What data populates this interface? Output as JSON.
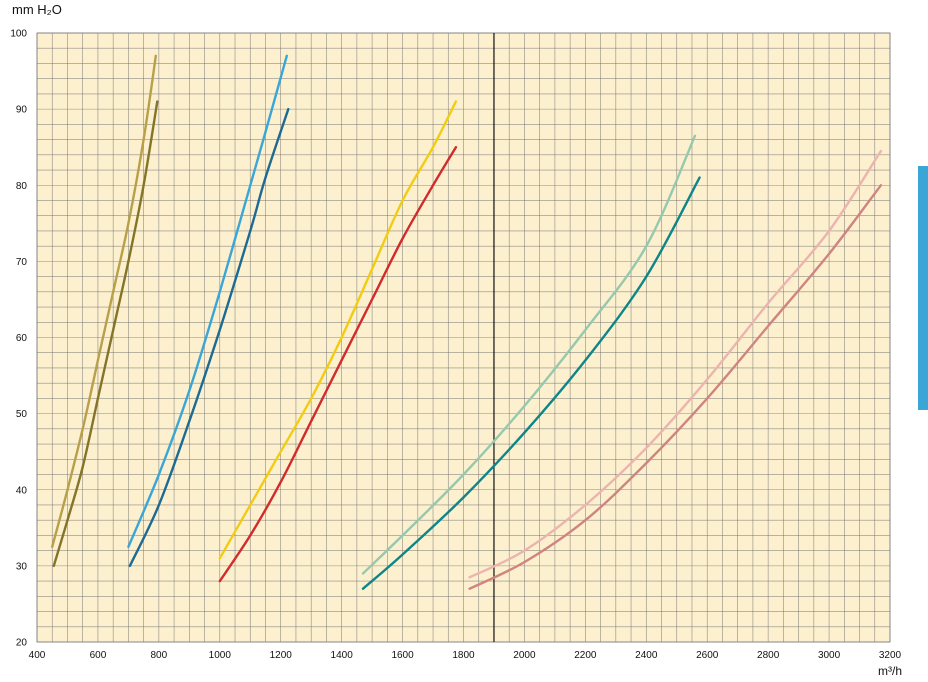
{
  "chart_data": {
    "type": "line",
    "title": "",
    "xlabel": "m³/h",
    "ylabel": "mm H₂O",
    "xlim": [
      400,
      3200
    ],
    "ylim": [
      20,
      100
    ],
    "x_ticks": [
      400,
      600,
      800,
      1000,
      1200,
      1400,
      1600,
      1800,
      2000,
      2200,
      2400,
      2600,
      2800,
      3000,
      3200
    ],
    "y_ticks": [
      20,
      30,
      40,
      50,
      60,
      70,
      80,
      90,
      100
    ],
    "x_tick_labels": [
      "400",
      "600",
      "800",
      "1000",
      "1200",
      "1400",
      "1600",
      "1800",
      "2000",
      "2200",
      "2400",
      "2600",
      "2800",
      "3000",
      "3200"
    ],
    "y_tick_labels": [
      "20",
      "30",
      "40",
      "50",
      "60",
      "70",
      "80",
      "90",
      "100"
    ],
    "grid": true,
    "reference_line_x": 1900,
    "colors": {
      "background": "#fcf0cf",
      "grid": "#6b6b6b",
      "reference_line": "#111111",
      "side_tab": "#3aa6d8"
    },
    "series": [
      {
        "color": "#b8a04a",
        "points": [
          [
            450,
            32.5
          ],
          [
            500,
            40
          ],
          [
            550,
            48
          ],
          [
            600,
            57
          ],
          [
            650,
            66
          ],
          [
            700,
            75
          ],
          [
            750,
            86
          ],
          [
            790,
            97
          ]
        ]
      },
      {
        "color": "#857428",
        "points": [
          [
            455,
            30
          ],
          [
            500,
            36
          ],
          [
            550,
            43
          ],
          [
            600,
            52
          ],
          [
            650,
            61
          ],
          [
            700,
            70
          ],
          [
            750,
            80
          ],
          [
            795,
            91
          ]
        ]
      },
      {
        "color": "#3aa6d8",
        "points": [
          [
            700,
            32.5
          ],
          [
            800,
            42
          ],
          [
            900,
            53
          ],
          [
            1000,
            66
          ],
          [
            1100,
            80
          ],
          [
            1150,
            87
          ],
          [
            1220,
            97
          ]
        ]
      },
      {
        "color": "#1d6a93",
        "points": [
          [
            705,
            30
          ],
          [
            800,
            38
          ],
          [
            900,
            49
          ],
          [
            1000,
            61
          ],
          [
            1100,
            74
          ],
          [
            1150,
            81
          ],
          [
            1225,
            90
          ]
        ]
      },
      {
        "color": "#f2cc12",
        "points": [
          [
            1000,
            31
          ],
          [
            1100,
            38
          ],
          [
            1200,
            45
          ],
          [
            1300,
            52
          ],
          [
            1400,
            60
          ],
          [
            1500,
            69
          ],
          [
            1600,
            78
          ],
          [
            1700,
            85
          ],
          [
            1775,
            91
          ]
        ]
      },
      {
        "color": "#d12b2b",
        "points": [
          [
            1000,
            28
          ],
          [
            1100,
            34
          ],
          [
            1200,
            41
          ],
          [
            1300,
            49
          ],
          [
            1400,
            57
          ],
          [
            1500,
            65
          ],
          [
            1600,
            73
          ],
          [
            1700,
            80
          ],
          [
            1775,
            85
          ]
        ]
      },
      {
        "color": "#96c8ae",
        "points": [
          [
            1470,
            29
          ],
          [
            1600,
            34
          ],
          [
            1800,
            42
          ],
          [
            2000,
            51
          ],
          [
            2200,
            61
          ],
          [
            2400,
            72
          ],
          [
            2560,
            86.5
          ]
        ]
      },
      {
        "color": "#0d8589",
        "points": [
          [
            1470,
            27
          ],
          [
            1600,
            31.5
          ],
          [
            1800,
            39
          ],
          [
            2000,
            47.5
          ],
          [
            2200,
            57
          ],
          [
            2400,
            68
          ],
          [
            2575,
            81
          ]
        ]
      },
      {
        "color": "#ecb4ae",
        "points": [
          [
            1820,
            28.5
          ],
          [
            2000,
            32
          ],
          [
            2200,
            38
          ],
          [
            2400,
            45.5
          ],
          [
            2600,
            54.5
          ],
          [
            2800,
            64.5
          ],
          [
            3000,
            74
          ],
          [
            3170,
            84.5
          ]
        ]
      },
      {
        "color": "#cf8480",
        "points": [
          [
            1820,
            27
          ],
          [
            2000,
            30.5
          ],
          [
            2200,
            36
          ],
          [
            2400,
            43.5
          ],
          [
            2600,
            52
          ],
          [
            2800,
            61.5
          ],
          [
            3000,
            71
          ],
          [
            3170,
            80
          ]
        ]
      }
    ]
  }
}
